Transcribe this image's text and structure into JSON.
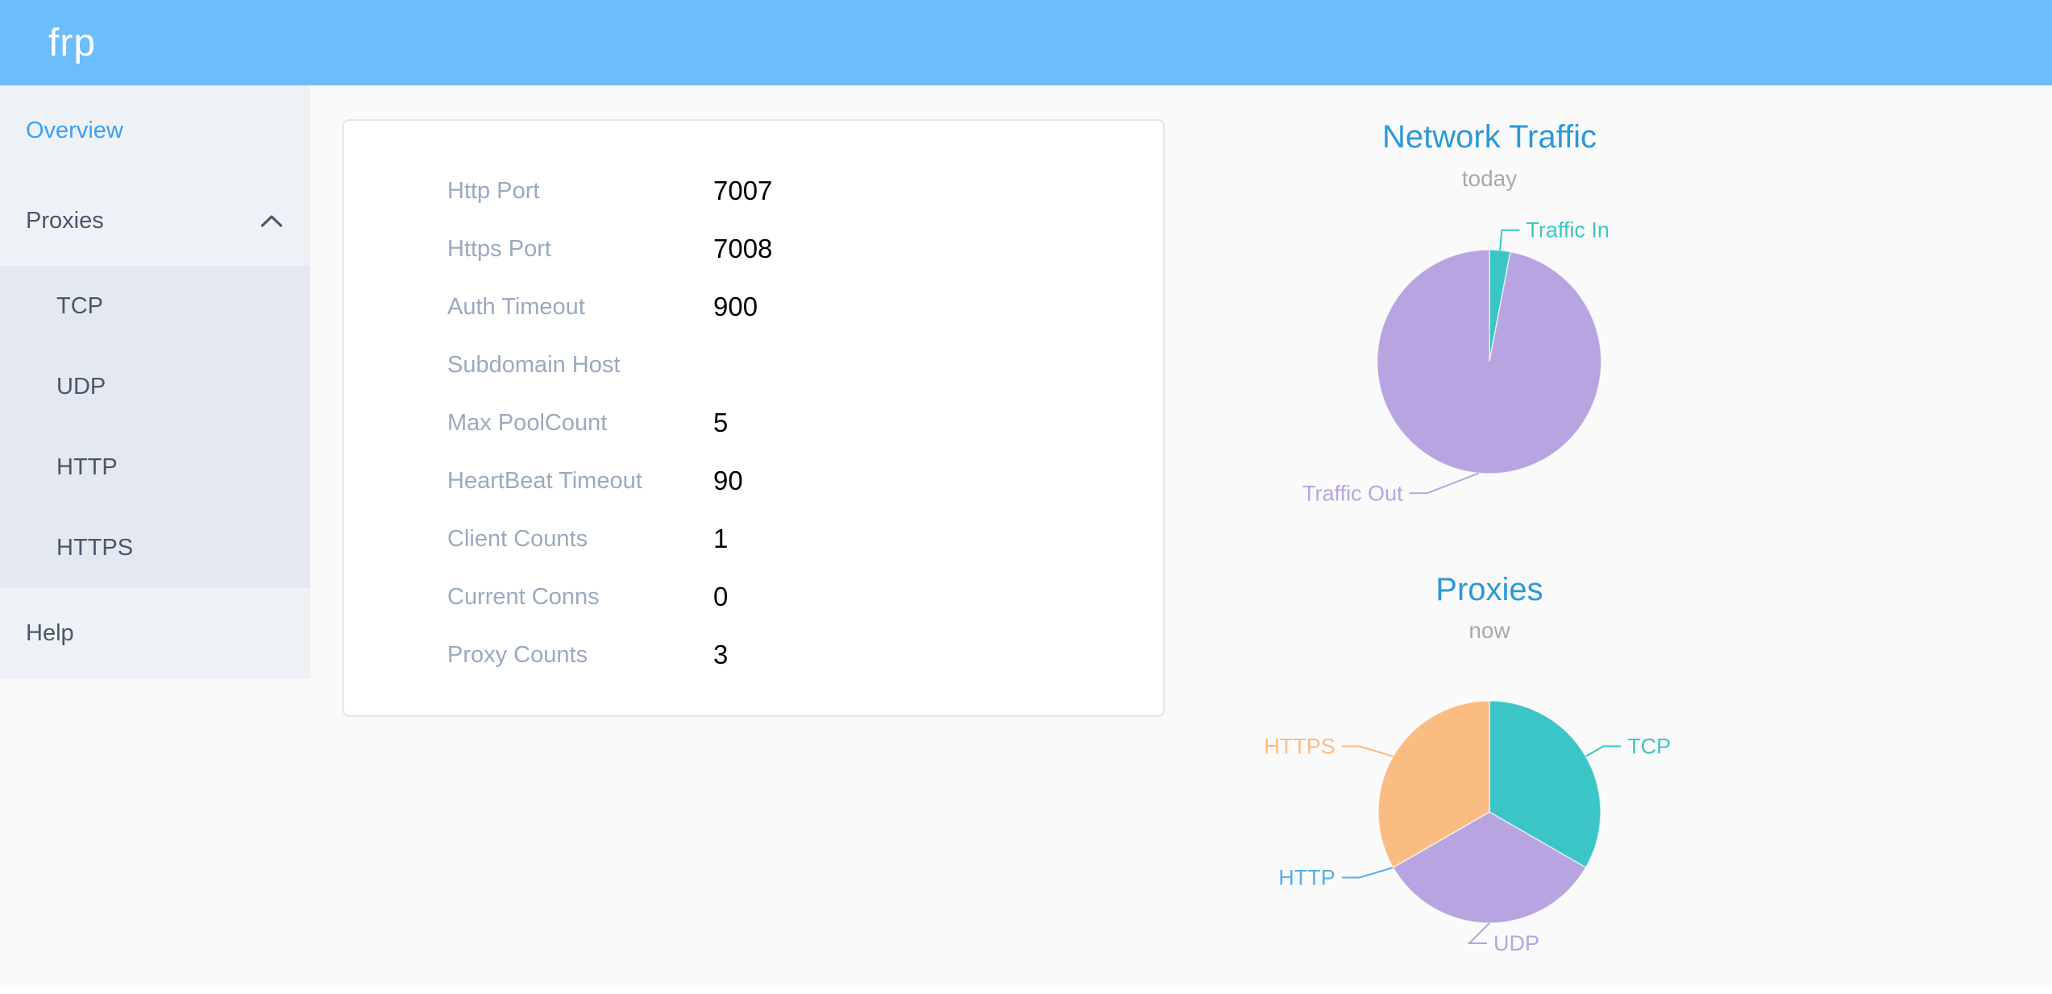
{
  "header": {
    "logo": "frp"
  },
  "sidebar": {
    "items": [
      {
        "label": "Overview",
        "active": true
      },
      {
        "label": "Proxies",
        "expanded": true
      },
      {
        "label": "TCP"
      },
      {
        "label": "UDP"
      },
      {
        "label": "HTTP"
      },
      {
        "label": "HTTPS"
      },
      {
        "label": "Help"
      }
    ]
  },
  "config_card": {
    "rows": [
      {
        "label": "Http Port",
        "value": "7007"
      },
      {
        "label": "Https Port",
        "value": "7008"
      },
      {
        "label": "Auth Timeout",
        "value": "900"
      },
      {
        "label": "Subdomain Host",
        "value": ""
      },
      {
        "label": "Max PoolCount",
        "value": "5"
      },
      {
        "label": "HeartBeat Timeout",
        "value": "90"
      },
      {
        "label": "Client Counts",
        "value": "1"
      },
      {
        "label": "Current Conns",
        "value": "0"
      },
      {
        "label": "Proxy Counts",
        "value": "3"
      }
    ]
  },
  "chart_data": [
    {
      "type": "pie",
      "title": "Network Traffic",
      "subtitle": "today",
      "labels": [
        "Traffic In",
        "Traffic Out"
      ],
      "values": [
        3,
        97
      ],
      "value_unit": "percent_of_total_estimated_from_arc_angles",
      "colors": [
        "#3cc5c7",
        "#b7a4e0"
      ],
      "legend_position": "outside-labels-with-connector-lines"
    },
    {
      "type": "pie",
      "title": "Proxies",
      "subtitle": "now",
      "labels": [
        "TCP",
        "UDP",
        "HTTP",
        "HTTPS"
      ],
      "values": [
        1,
        1,
        0,
        1
      ],
      "value_unit": "proxy_count",
      "colors": [
        "#3cc5c7",
        "#b7a4e0",
        "#5aaeea",
        "#fbbc84"
      ],
      "legend_position": "outside-labels-with-connector-lines"
    }
  ],
  "colors": {
    "header_background": "#6cbdfb",
    "sidebar_background": "#eef1f6",
    "submenu_background": "#e4e8f0",
    "menu_text": "#48576a",
    "active_menu_item": "#3aa1f7",
    "chart_title_blue": "#2c99d8",
    "card_label_gray": "#9aaabf",
    "teal": "#3cc5c7",
    "purple": "#b7a4e0",
    "light_blue": "#5aaeea",
    "orange": "#fbbc84"
  }
}
